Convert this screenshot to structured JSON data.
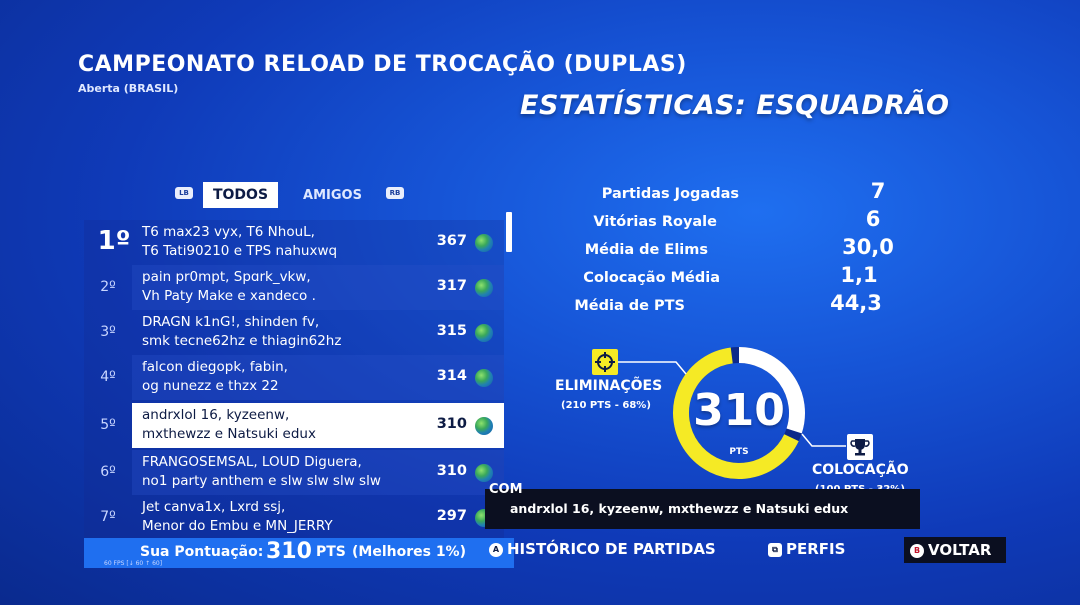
{
  "header": {
    "title": "CAMPEONATO RELOAD DE TROCAÇÃO (DUPLAS)",
    "subtitle": "Aberta (BRASIL)",
    "section_title": "ESTATÍSTICAS: ESQUADRÃO"
  },
  "tabs": {
    "left_shoulder": "LB",
    "right_shoulder": "RB",
    "all": "TODOS",
    "friends": "AMIGOS"
  },
  "leaderboard": [
    {
      "rank": "1º",
      "line1": "T6 max23 vyx, T6 NhouL,",
      "line2": "T6 Tati90210 e TPS nahuxwq",
      "points": "367"
    },
    {
      "rank": "2º",
      "line1": "pain pr0mpt, Spɑrk_vkw,",
      "line2": "Vh Paty Make e xandeco .",
      "points": "317"
    },
    {
      "rank": "3º",
      "line1": "DRAGN k1nG!, shinden fv,",
      "line2": "smk tecne62hz e thiagin62hz",
      "points": "315"
    },
    {
      "rank": "4º",
      "line1": "falcon diegopk, fabin,",
      "line2": "og nunezz e thzx 22",
      "points": "314"
    },
    {
      "rank": "5º",
      "line1": "andrxlol 16, kyzeenw,",
      "line2": "mxthewzz e Natsuki edux",
      "points": "310"
    },
    {
      "rank": "6º",
      "line1": "FRANGOSEMSAL, LOUD Diguera,",
      "line2": "no1 party anthem e slw slw slw slw",
      "points": "310"
    },
    {
      "rank": "7º",
      "line1": "Jet canva1x, Lxrd ssj,",
      "line2": "Menor do Embu e MN_JERRY",
      "points": "297"
    }
  ],
  "score": {
    "label": "Sua Pontuação:",
    "value": "310",
    "unit": "PTS",
    "rank_note": "(Melhores 1%)",
    "fps": "60 FPS [↓ 60 ↑ 60]"
  },
  "stats": [
    {
      "label": "Partidas Jogadas",
      "value": "7"
    },
    {
      "label": "Vitórias Royale",
      "value": "6"
    },
    {
      "label": "Média de Elims",
      "value": "30,0"
    },
    {
      "label": "Colocação Média",
      "value": "1,1"
    },
    {
      "label": "Média de PTS",
      "value": "44,3"
    }
  ],
  "donut": {
    "value": "310",
    "unit": "PTS",
    "elim_fraction": 0.68,
    "colors": {
      "eliminations": "#f5ea25",
      "placement": "#ffffff"
    },
    "eliminations_label": "ELIMINAÇÕES",
    "eliminations_detail": "(210 PTS - 68%)",
    "placement_label": "COLOCAÇÃO",
    "placement_detail": "(100 PTS - 32%)"
  },
  "team": {
    "prefix": "COM",
    "names": "andrxlol 16, kyzeenw, mxthewzz e Natsuki edux"
  },
  "actions": {
    "history_key": "A",
    "history": "HISTÓRICO DE PARTIDAS",
    "profiles": "PERFIS",
    "back_key": "B",
    "back": "VOLTAR"
  }
}
